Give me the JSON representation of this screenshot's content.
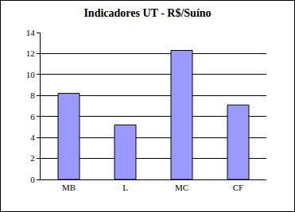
{
  "chart_data": {
    "type": "bar",
    "title": "Indicadores UT - R$/Suíno",
    "categories": [
      "MB",
      "L",
      "MC",
      "CF"
    ],
    "values": [
      8.2,
      5.2,
      12.3,
      7.1
    ],
    "color": "#9999ff",
    "ylim": [
      0,
      14
    ],
    "yticks": [
      0,
      2,
      4,
      6,
      8,
      10,
      12,
      14
    ],
    "grid": true
  }
}
